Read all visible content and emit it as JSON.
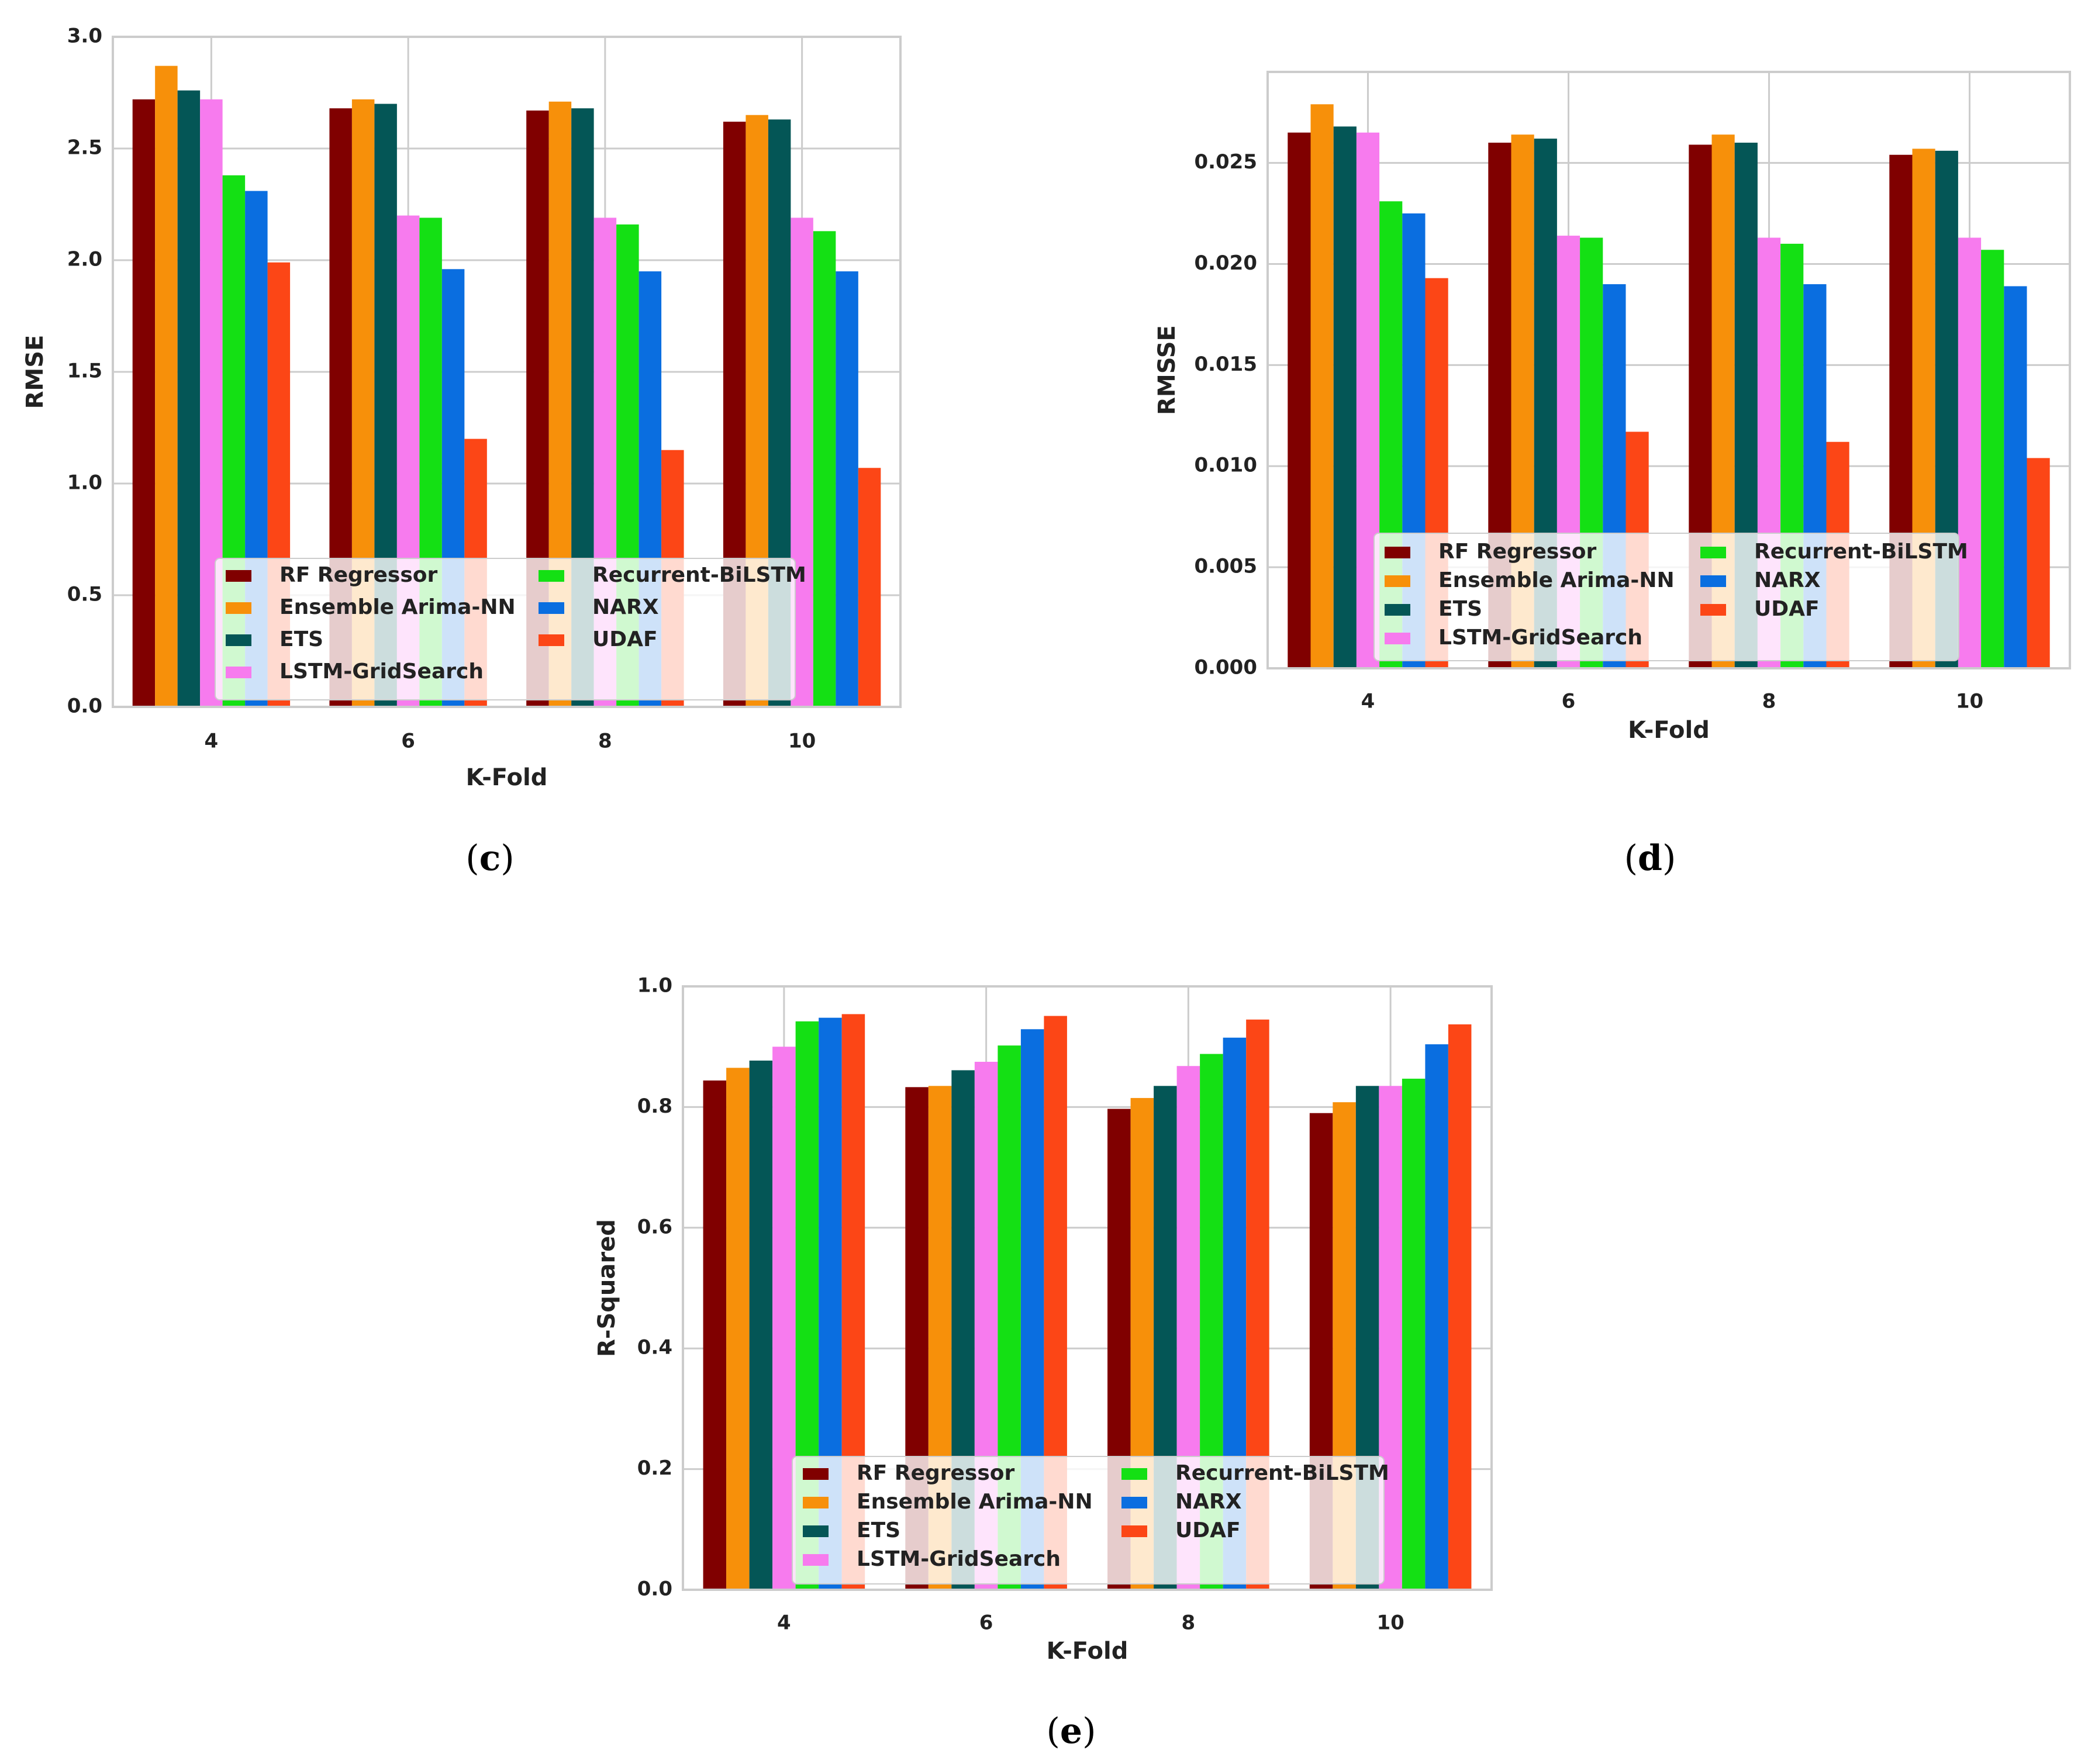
{
  "colors": {
    "RF Regressor": "#800000",
    "Ensemble Arima-NN": "#f7900a",
    "ETS": "#045656",
    "LSTM-GridSearch": "#f77bee",
    "Recurrent-BiLSTM": "#14e014",
    "NARX": "#0a6ee0",
    "UDAF": "#fc4616",
    "grid": "#cccccc",
    "frame": "#cccccc",
    "legend_bg": "#ffffff"
  },
  "chart_data": [
    {
      "panel": "c",
      "type": "bar",
      "caption": "(c)",
      "caption_letter": "c",
      "xlabel": "K-Fold",
      "ylabel": "RMSE",
      "categories": [
        "4",
        "6",
        "8",
        "10"
      ],
      "ylim": [
        0,
        3.0
      ],
      "yticks": [
        0.0,
        0.5,
        1.0,
        1.5,
        2.0,
        2.5,
        3.0
      ],
      "ytick_labels": [
        "0.0",
        "0.5",
        "1.0",
        "1.5",
        "2.0",
        "2.5",
        "3.0"
      ],
      "grid": true,
      "legend_position": "bottom-center",
      "series": [
        {
          "name": "RF Regressor",
          "values": [
            2.72,
            2.68,
            2.67,
            2.62
          ]
        },
        {
          "name": "Ensemble Arima-NN",
          "values": [
            2.87,
            2.72,
            2.71,
            2.65
          ]
        },
        {
          "name": "ETS",
          "values": [
            2.76,
            2.7,
            2.68,
            2.63
          ]
        },
        {
          "name": "LSTM-GridSearch",
          "values": [
            2.72,
            2.2,
            2.19,
            2.19
          ]
        },
        {
          "name": "Recurrent-BiLSTM",
          "values": [
            2.38,
            2.19,
            2.16,
            2.13
          ]
        },
        {
          "name": "NARX",
          "values": [
            2.31,
            1.96,
            1.95,
            1.95
          ]
        },
        {
          "name": "UDAF",
          "values": [
            1.99,
            1.2,
            1.15,
            1.07
          ]
        }
      ]
    },
    {
      "panel": "d",
      "type": "bar",
      "caption": "(d)",
      "caption_letter": "d",
      "xlabel": "K-Fold",
      "ylabel": "RMSSE",
      "categories": [
        "4",
        "6",
        "8",
        "10"
      ],
      "ylim": [
        0,
        0.0295
      ],
      "yticks": [
        0.0,
        0.005,
        0.01,
        0.015,
        0.02,
        0.025
      ],
      "ytick_labels": [
        "0.000",
        "0.005",
        "0.010",
        "0.015",
        "0.020",
        "0.025"
      ],
      "grid": true,
      "legend_position": "bottom-center",
      "series": [
        {
          "name": "RF Regressor",
          "values": [
            0.0265,
            0.026,
            0.0259,
            0.0254
          ]
        },
        {
          "name": "Ensemble Arima-NN",
          "values": [
            0.0279,
            0.0264,
            0.0264,
            0.0257
          ]
        },
        {
          "name": "ETS",
          "values": [
            0.0268,
            0.0262,
            0.026,
            0.0256
          ]
        },
        {
          "name": "LSTM-GridSearch",
          "values": [
            0.0265,
            0.0214,
            0.0213,
            0.0213
          ]
        },
        {
          "name": "Recurrent-BiLSTM",
          "values": [
            0.0231,
            0.0213,
            0.021,
            0.0207
          ]
        },
        {
          "name": "NARX",
          "values": [
            0.0225,
            0.019,
            0.019,
            0.0189
          ]
        },
        {
          "name": "UDAF",
          "values": [
            0.0193,
            0.0117,
            0.0112,
            0.0104
          ]
        }
      ]
    },
    {
      "panel": "e",
      "type": "bar",
      "caption": "(e)",
      "caption_letter": "e",
      "xlabel": "K-Fold",
      "ylabel": "R-Squared",
      "categories": [
        "4",
        "6",
        "8",
        "10"
      ],
      "ylim": [
        0,
        1.0
      ],
      "yticks": [
        0.0,
        0.2,
        0.4,
        0.6,
        0.8,
        1.0
      ],
      "ytick_labels": [
        "0.0",
        "0.2",
        "0.4",
        "0.6",
        "0.8",
        "1.0"
      ],
      "grid": true,
      "legend_position": "bottom-center",
      "series": [
        {
          "name": "RF Regressor",
          "values": [
            0.844,
            0.833,
            0.797,
            0.79
          ]
        },
        {
          "name": "Ensemble Arima-NN",
          "values": [
            0.865,
            0.835,
            0.815,
            0.808
          ]
        },
        {
          "name": "ETS",
          "values": [
            0.877,
            0.861,
            0.835,
            0.835
          ]
        },
        {
          "name": "LSTM-GridSearch",
          "values": [
            0.9,
            0.875,
            0.868,
            0.835
          ]
        },
        {
          "name": "Recurrent-BiLSTM",
          "values": [
            0.942,
            0.902,
            0.888,
            0.847
          ]
        },
        {
          "name": "NARX",
          "values": [
            0.948,
            0.929,
            0.915,
            0.904
          ]
        },
        {
          "name": "UDAF",
          "values": [
            0.954,
            0.951,
            0.945,
            0.937
          ]
        }
      ]
    }
  ]
}
